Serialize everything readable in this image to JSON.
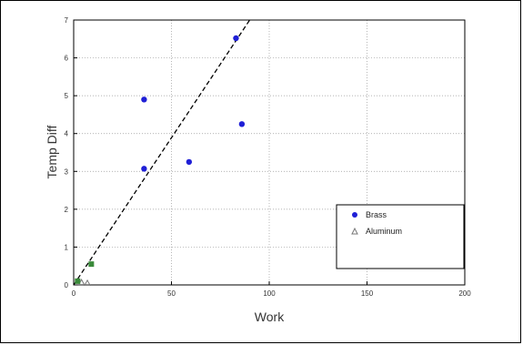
{
  "chart_data": {
    "type": "scatter",
    "title": "",
    "xlabel": "Work",
    "ylabel": "Temp Diff",
    "xlim": [
      0,
      200
    ],
    "ylim": [
      0,
      7
    ],
    "xticks": [
      0,
      50,
      100,
      150,
      200
    ],
    "yticks": [
      0,
      1,
      2,
      3,
      4,
      5,
      6,
      7
    ],
    "grid": true,
    "legend_position": "lower-right",
    "series": [
      {
        "name": "Brass",
        "marker": "circle",
        "color": "#1f1fd6",
        "points": [
          [
            36,
            3.07
          ],
          [
            36,
            4.9
          ],
          [
            59,
            3.25
          ],
          [
            83,
            6.52
          ],
          [
            86,
            4.25
          ]
        ]
      },
      {
        "name": "Aluminum",
        "marker": "triangle",
        "color": "#777777",
        "points": [
          [
            4,
            0.07
          ],
          [
            7,
            0.05
          ]
        ]
      },
      {
        "name": "",
        "marker": "square",
        "color": "#3a8a3a",
        "points": [
          [
            9,
            0.55
          ],
          [
            2,
            0.1
          ]
        ]
      }
    ],
    "fit_line": {
      "style": "dashed",
      "color": "#000000",
      "points": [
        [
          0,
          0
        ],
        [
          90,
          7
        ]
      ]
    }
  }
}
